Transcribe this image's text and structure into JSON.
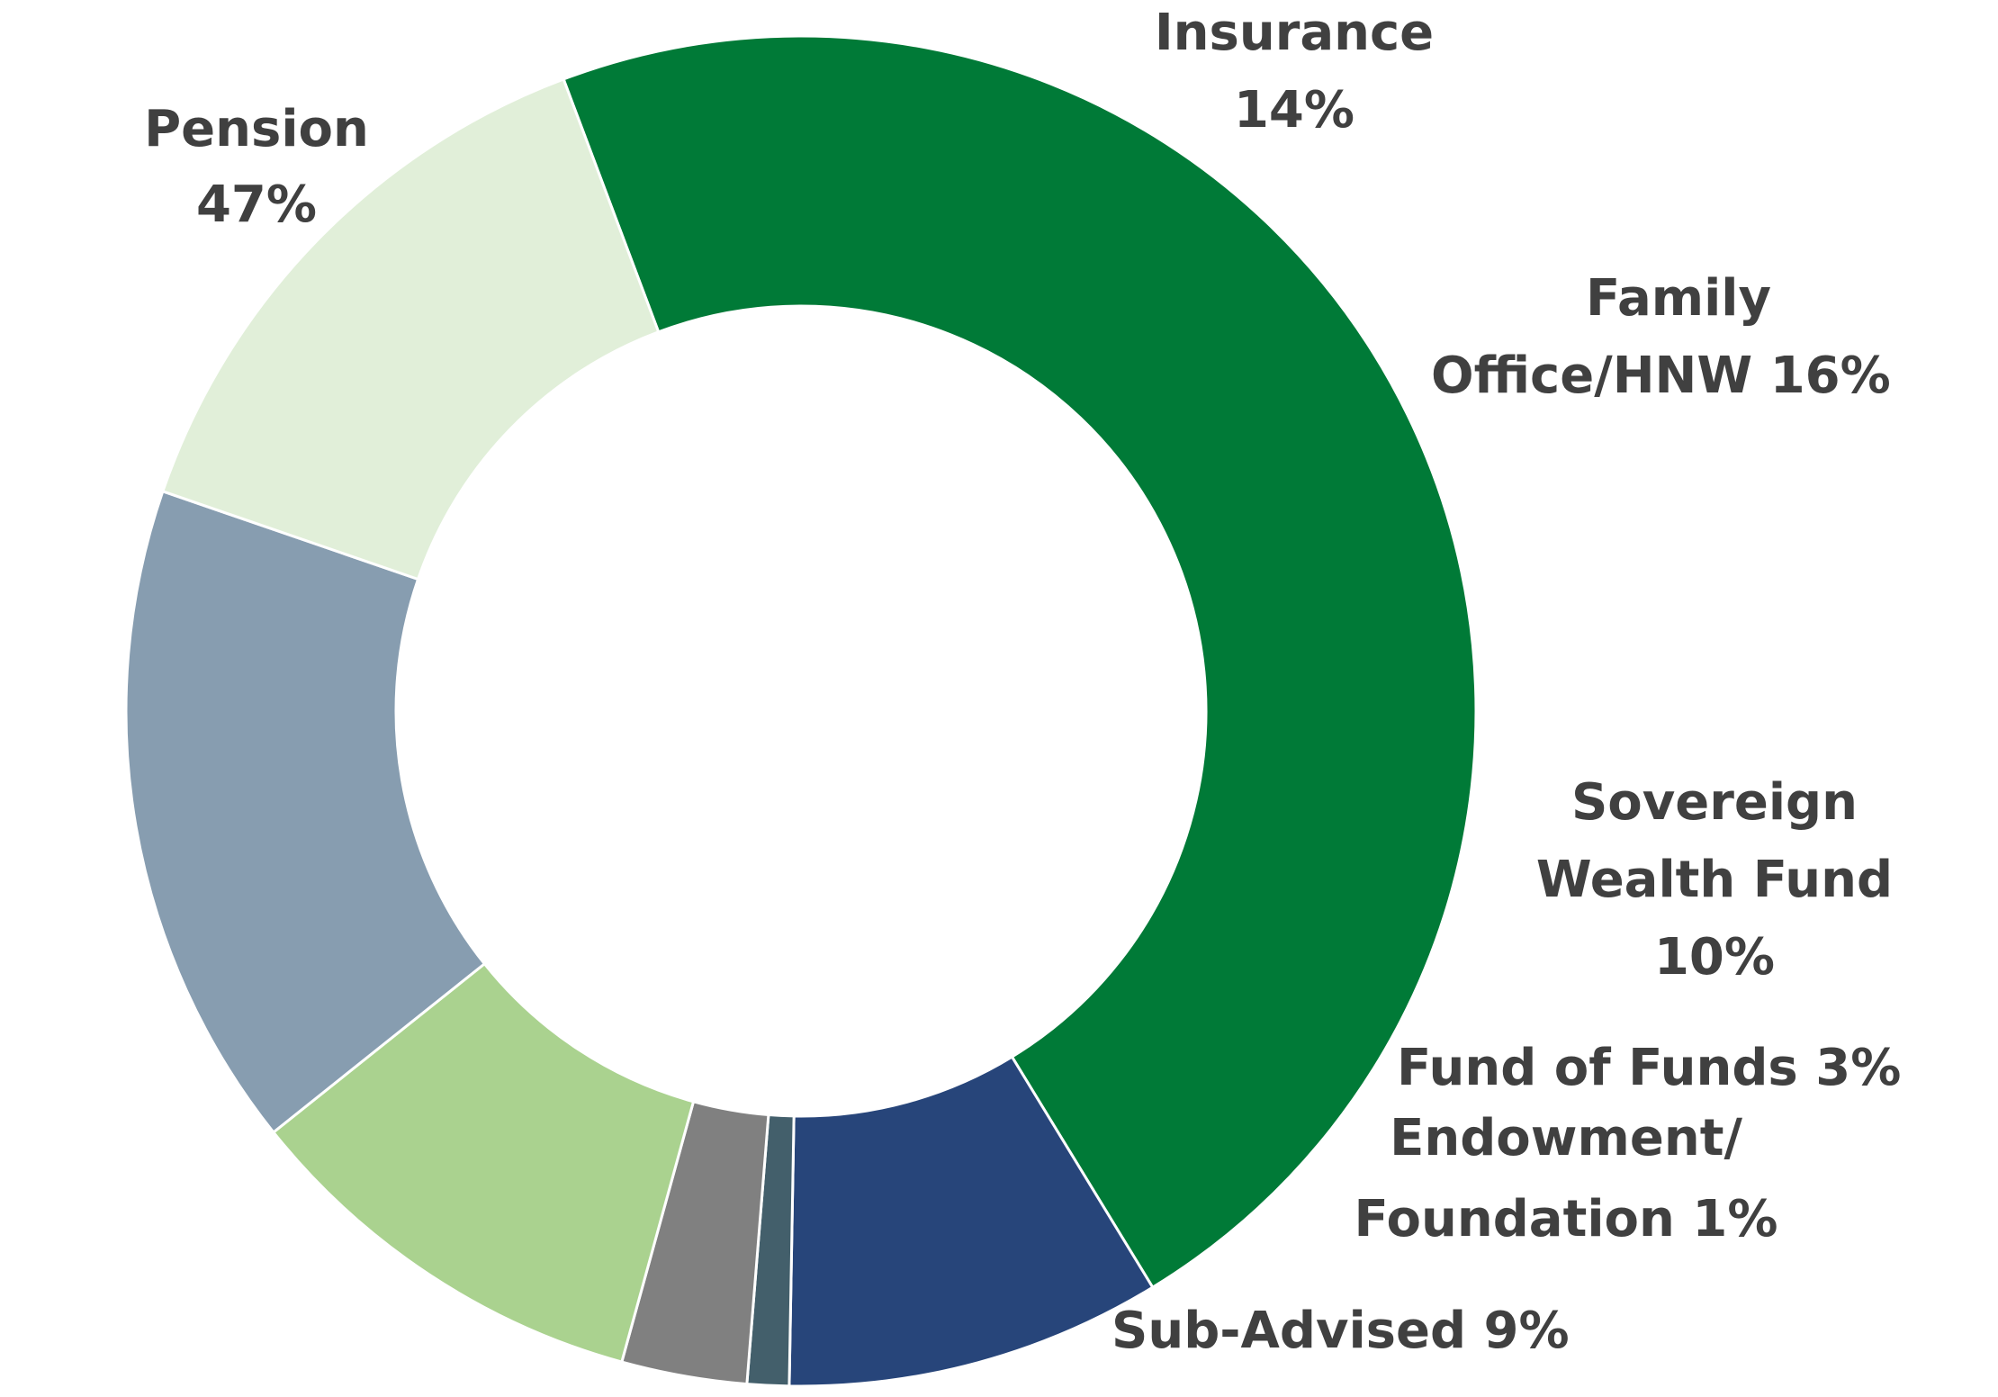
{
  "chart_data": {
    "type": "pie",
    "variant": "donut",
    "title": "",
    "legend": "none",
    "slices": [
      {
        "name": "Pension",
        "value": 47,
        "label": [
          "Pension",
          "47%"
        ],
        "color": "#007A37"
      },
      {
        "name": "Sub-Advised",
        "value": 9,
        "label": [
          "Sub-Advised 9%"
        ],
        "color": "#27457A"
      },
      {
        "name": "Endowment/ Foundation",
        "value": 1,
        "label": [
          "Endowment/",
          "Foundation  1%"
        ],
        "color": "#435F6B"
      },
      {
        "name": "Fund of Funds",
        "value": 3,
        "label": [
          "Fund of Funds  3%"
        ],
        "color": "#808080"
      },
      {
        "name": "Sovereign Wealth Fund",
        "value": 10,
        "label": [
          "Sovereign",
          "Wealth Fund",
          "10%"
        ],
        "color": "#AAD28F"
      },
      {
        "name": "Family Office/HNW",
        "value": 16,
        "label": [
          "Family",
          "Office/HNW  16%"
        ],
        "color": "#879DB0"
      },
      {
        "name": "Insurance",
        "value": 14,
        "label": [
          "Insurance",
          "14%"
        ],
        "color": "#E1EFD9"
      }
    ]
  }
}
